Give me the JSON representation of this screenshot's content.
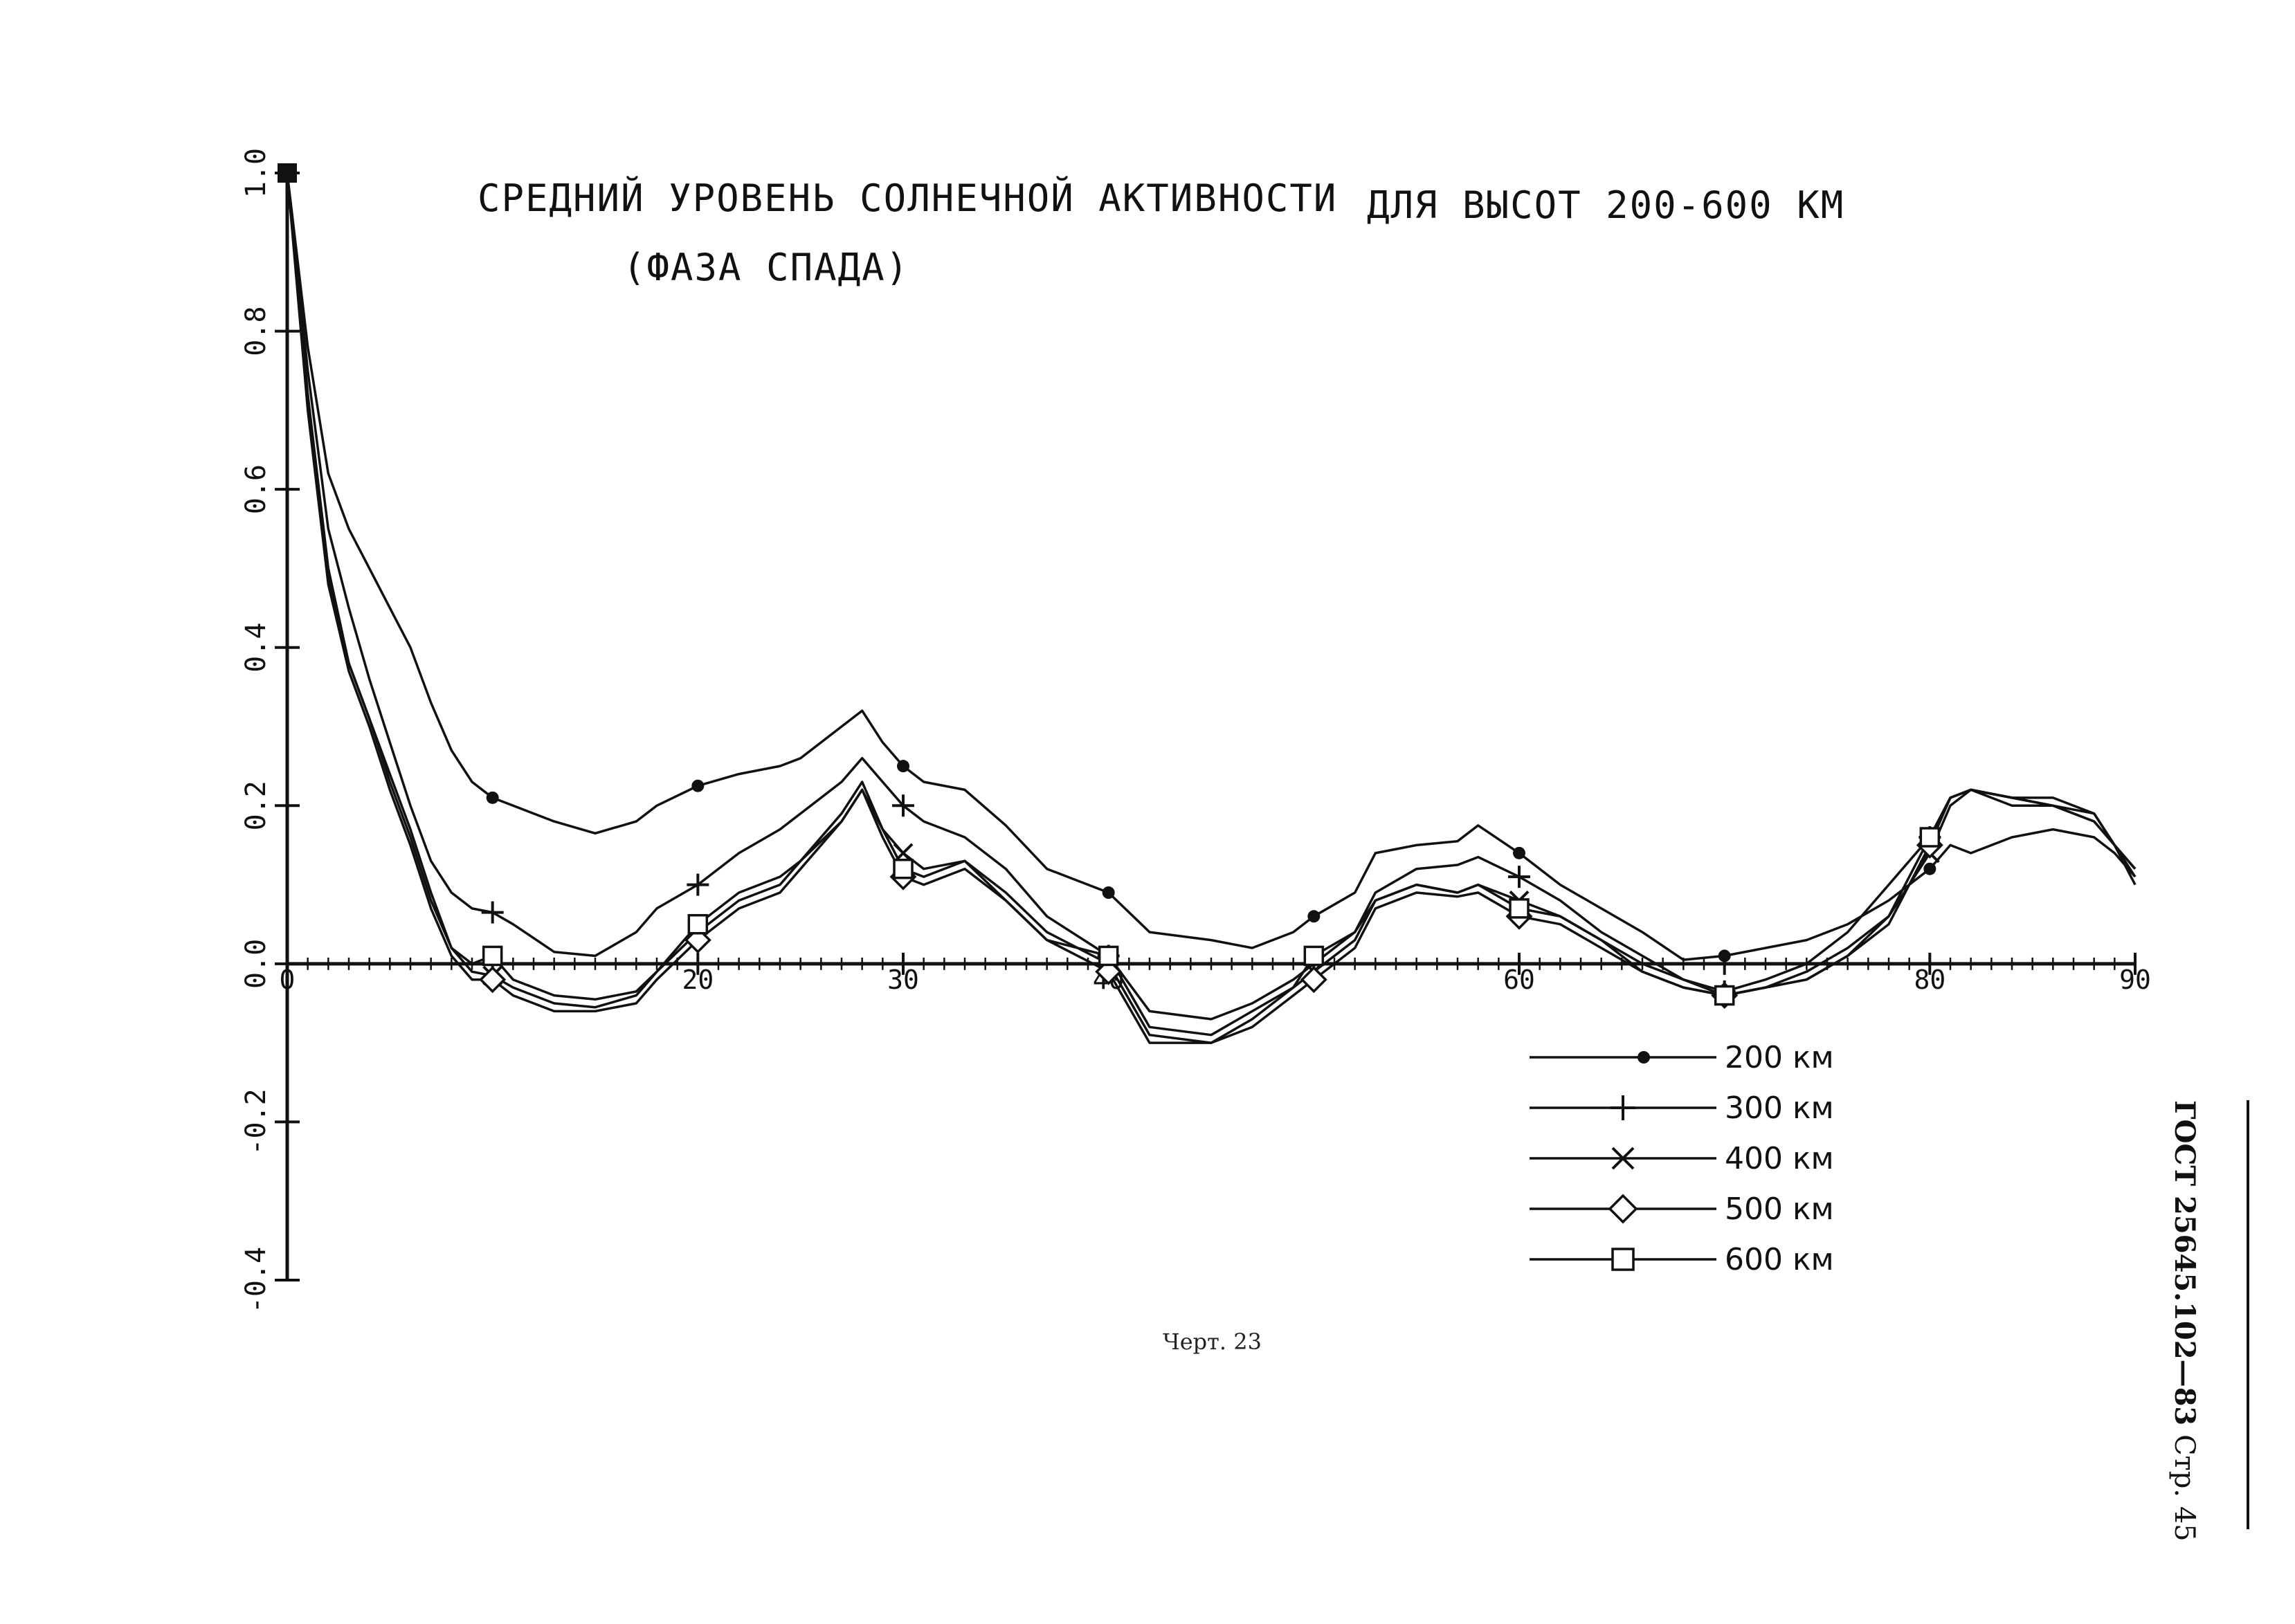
{
  "chart_data": {
    "type": "line",
    "title": "СРЕДНИЙ УРОВЕНЬ СОЛНЕЧНОЙ АКТИВНОСТИ",
    "title_right": "ДЛЯ ВЫСОТ 200-600 КМ",
    "subtitle": "(ФАЗА СПАДА)",
    "xlabel": "",
    "ylabel": "",
    "xlim": [
      0,
      90
    ],
    "ylim": [
      -0.4,
      1.0
    ],
    "x_ticks": [
      "0",
      "20",
      "30",
      "40",
      "60",
      "80",
      "90"
    ],
    "x_tick_values": [
      0,
      20,
      30,
      40,
      60,
      80,
      90
    ],
    "y_ticks": [
      "1.0",
      "0.8",
      "0.6",
      "0.4",
      "0.2",
      "0.0",
      "-0.2",
      "-0.4"
    ],
    "y_tick_values": [
      1.0,
      0.8,
      0.6,
      0.4,
      0.2,
      0.0,
      -0.2,
      -0.4
    ],
    "grid": false,
    "legend_position": "bottom-right",
    "series": [
      {
        "name": "200 км",
        "marker": "dot",
        "x": [
          0,
          1,
          2,
          3,
          4,
          5,
          6,
          7,
          8,
          9,
          10,
          11,
          13,
          15,
          17,
          18,
          20,
          22,
          24,
          25,
          27,
          28,
          29,
          30,
          31,
          33,
          35,
          37,
          40,
          42,
          45,
          47,
          49,
          50,
          52,
          53,
          55,
          57,
          58,
          60,
          62,
          64,
          66,
          68,
          70,
          72,
          74,
          76,
          78,
          80,
          81,
          82,
          84,
          86,
          88,
          89,
          90
        ],
        "y": [
          1.0,
          0.78,
          0.62,
          0.55,
          0.5,
          0.45,
          0.4,
          0.33,
          0.27,
          0.23,
          0.21,
          0.2,
          0.18,
          0.165,
          0.18,
          0.2,
          0.225,
          0.24,
          0.25,
          0.26,
          0.3,
          0.32,
          0.28,
          0.25,
          0.23,
          0.22,
          0.175,
          0.12,
          0.09,
          0.04,
          0.03,
          0.02,
          0.04,
          0.06,
          0.09,
          0.14,
          0.15,
          0.155,
          0.175,
          0.14,
          0.1,
          0.07,
          0.04,
          0.005,
          0.01,
          0.02,
          0.03,
          0.05,
          0.08,
          0.12,
          0.15,
          0.14,
          0.16,
          0.17,
          0.16,
          0.14,
          0.11
        ]
      },
      {
        "name": "300 км",
        "marker": "plus",
        "x": [
          0,
          1,
          2,
          3,
          4,
          5,
          6,
          7,
          8,
          9,
          10,
          11,
          13,
          15,
          17,
          18,
          20,
          22,
          24,
          25,
          27,
          28,
          29,
          30,
          31,
          33,
          35,
          37,
          40,
          42,
          45,
          47,
          49,
          50,
          52,
          53,
          55,
          57,
          58,
          60,
          62,
          64,
          66,
          68,
          70,
          72,
          74,
          76,
          78,
          80,
          81,
          82,
          84,
          86,
          88,
          89,
          90
        ],
        "y": [
          1.0,
          0.75,
          0.55,
          0.45,
          0.36,
          0.28,
          0.2,
          0.13,
          0.09,
          0.07,
          0.065,
          0.05,
          0.015,
          0.01,
          0.04,
          0.07,
          0.1,
          0.14,
          0.17,
          0.19,
          0.23,
          0.26,
          0.23,
          0.2,
          0.18,
          0.16,
          0.12,
          0.06,
          0.01,
          -0.06,
          -0.07,
          -0.05,
          -0.02,
          0.0,
          0.04,
          0.09,
          0.12,
          0.125,
          0.135,
          0.11,
          0.08,
          0.04,
          0.01,
          -0.02,
          -0.035,
          -0.02,
          0.0,
          0.04,
          0.1,
          0.16,
          0.21,
          0.22,
          0.2,
          0.2,
          0.18,
          0.15,
          0.12
        ]
      },
      {
        "name": "400 км",
        "marker": "x",
        "x": [
          0,
          1,
          2,
          3,
          4,
          5,
          6,
          7,
          8,
          9,
          10,
          11,
          13,
          15,
          17,
          18,
          20,
          22,
          24,
          25,
          27,
          28,
          29,
          30,
          31,
          33,
          35,
          37,
          40,
          42,
          45,
          47,
          49,
          50,
          52,
          53,
          55,
          57,
          58,
          60,
          62,
          64,
          66,
          68,
          70,
          72,
          74,
          76,
          78,
          80,
          81,
          82,
          84,
          86,
          88,
          89,
          90
        ],
        "y": [
          1.0,
          0.72,
          0.5,
          0.38,
          0.31,
          0.24,
          0.17,
          0.09,
          0.02,
          -0.01,
          -0.015,
          -0.03,
          -0.05,
          -0.055,
          -0.04,
          -0.01,
          0.04,
          0.08,
          0.1,
          0.13,
          0.19,
          0.23,
          0.17,
          0.14,
          0.12,
          0.13,
          0.09,
          0.04,
          0.0,
          -0.09,
          -0.1,
          -0.07,
          -0.03,
          -0.01,
          0.03,
          0.08,
          0.1,
          0.09,
          0.1,
          0.08,
          0.06,
          0.03,
          0.0,
          -0.02,
          -0.04,
          -0.03,
          -0.01,
          0.02,
          0.06,
          0.14,
          0.2,
          0.22,
          0.21,
          0.2,
          0.19,
          0.15,
          0.12
        ]
      },
      {
        "name": "500 км",
        "marker": "diamond",
        "x": [
          0,
          1,
          2,
          3,
          4,
          5,
          6,
          7,
          8,
          9,
          10,
          11,
          13,
          15,
          17,
          18,
          20,
          22,
          24,
          25,
          27,
          28,
          29,
          30,
          31,
          33,
          35,
          37,
          40,
          42,
          45,
          47,
          49,
          50,
          52,
          53,
          55,
          57,
          58,
          60,
          62,
          64,
          66,
          68,
          70,
          72,
          74,
          76,
          78,
          80,
          81,
          82,
          84,
          86,
          88,
          89,
          90
        ],
        "y": [
          1.0,
          0.7,
          0.48,
          0.37,
          0.3,
          0.22,
          0.15,
          0.07,
          0.01,
          -0.02,
          -0.02,
          -0.04,
          -0.06,
          -0.06,
          -0.05,
          -0.02,
          0.03,
          0.07,
          0.09,
          0.12,
          0.18,
          0.22,
          0.16,
          0.11,
          0.1,
          0.12,
          0.08,
          0.03,
          -0.01,
          -0.1,
          -0.1,
          -0.08,
          -0.04,
          -0.02,
          0.02,
          0.07,
          0.09,
          0.085,
          0.09,
          0.06,
          0.05,
          0.02,
          -0.01,
          -0.03,
          -0.04,
          -0.03,
          -0.02,
          0.01,
          0.05,
          0.15,
          0.21,
          0.22,
          0.21,
          0.21,
          0.19,
          0.15,
          0.11
        ]
      },
      {
        "name": "600 км",
        "marker": "square",
        "x": [
          0,
          1,
          2,
          3,
          4,
          5,
          6,
          7,
          8,
          9,
          10,
          11,
          13,
          15,
          17,
          18,
          20,
          22,
          24,
          25,
          27,
          28,
          29,
          30,
          31,
          33,
          35,
          37,
          40,
          42,
          45,
          47,
          49,
          50,
          52,
          53,
          55,
          57,
          58,
          60,
          62,
          64,
          66,
          68,
          70,
          72,
          74,
          76,
          78,
          80,
          81,
          82,
          84,
          86,
          88,
          89,
          90
        ],
        "y": [
          1.0,
          0.71,
          0.49,
          0.38,
          0.31,
          0.23,
          0.16,
          0.08,
          0.02,
          0.0,
          0.01,
          -0.02,
          -0.04,
          -0.045,
          -0.035,
          -0.01,
          0.05,
          0.09,
          0.11,
          0.13,
          0.18,
          0.22,
          0.17,
          0.12,
          0.11,
          0.13,
          0.08,
          0.03,
          0.01,
          -0.08,
          -0.09,
          -0.06,
          -0.03,
          0.01,
          0.04,
          0.08,
          0.1,
          0.09,
          0.1,
          0.07,
          0.06,
          0.03,
          -0.01,
          -0.03,
          -0.04,
          -0.03,
          -0.02,
          0.01,
          0.06,
          0.16,
          0.21,
          0.22,
          0.21,
          0.2,
          0.18,
          0.15,
          0.1
        ]
      }
    ]
  },
  "caption": "Черт. 23",
  "page_header": {
    "standard": "ГОСТ 25645.102—83",
    "page": "Стр. 45"
  }
}
